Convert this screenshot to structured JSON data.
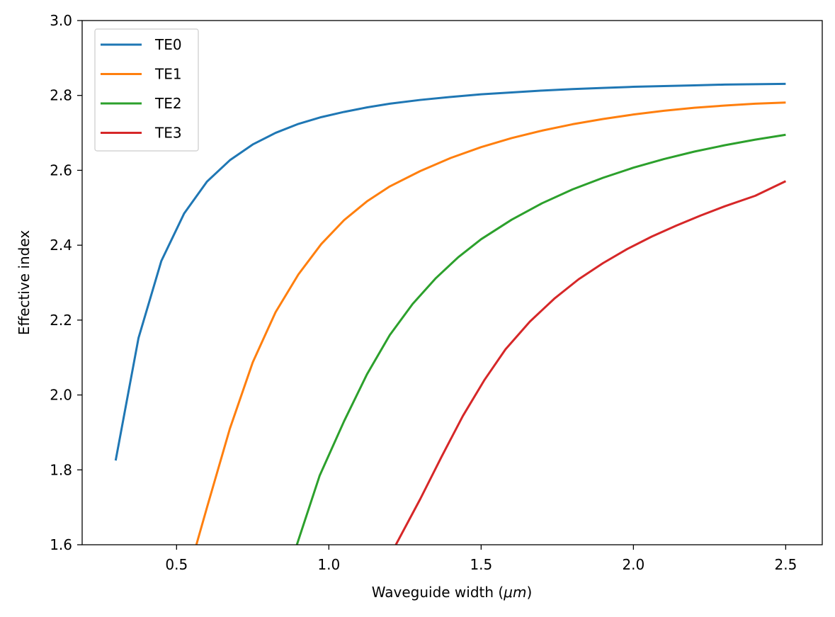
{
  "chart_data": {
    "type": "line",
    "title": "",
    "xlabel": "Waveguide width (μm)",
    "xlabel_prefix": "Waveguide width (",
    "xlabel_unit": "μm",
    "xlabel_suffix": ")",
    "ylabel": "Effective index",
    "xlim": [
      0.19,
      2.62
    ],
    "ylim": [
      1.6,
      3.0
    ],
    "xticks": [
      0.5,
      1.0,
      1.5,
      2.0,
      2.5
    ],
    "xtick_labels": [
      "0.5",
      "1.0",
      "1.5",
      "2.0",
      "2.5"
    ],
    "yticks": [
      1.6,
      1.8,
      2.0,
      2.2,
      2.4,
      2.6,
      2.8,
      3.0
    ],
    "ytick_labels": [
      "1.6",
      "1.8",
      "2.0",
      "2.2",
      "2.4",
      "2.6",
      "2.8",
      "3.0"
    ],
    "grid": false,
    "legend_position": "top-left",
    "series": [
      {
        "name": "TE0",
        "color": "#1f77b4",
        "x": [
          0.3,
          0.375,
          0.45,
          0.525,
          0.6,
          0.675,
          0.75,
          0.825,
          0.9,
          0.975,
          1.05,
          1.125,
          1.2,
          1.3,
          1.4,
          1.5,
          1.6,
          1.7,
          1.8,
          1.9,
          2.0,
          2.1,
          2.2,
          2.3,
          2.4,
          2.5
        ],
        "y": [
          1.825,
          2.152,
          2.358,
          2.485,
          2.57,
          2.627,
          2.669,
          2.7,
          2.724,
          2.742,
          2.756,
          2.768,
          2.778,
          2.788,
          2.796,
          2.803,
          2.808,
          2.813,
          2.817,
          2.82,
          2.823,
          2.825,
          2.827,
          2.829,
          2.83,
          2.831
        ]
      },
      {
        "name": "TE1",
        "color": "#ff7f0e",
        "x": [
          0.565,
          0.6,
          0.675,
          0.75,
          0.825,
          0.9,
          0.975,
          1.05,
          1.125,
          1.2,
          1.3,
          1.4,
          1.5,
          1.6,
          1.7,
          1.8,
          1.9,
          2.0,
          2.1,
          2.2,
          2.3,
          2.4,
          2.5
        ],
        "y": [
          1.6,
          1.7,
          1.91,
          2.087,
          2.221,
          2.322,
          2.403,
          2.467,
          2.517,
          2.557,
          2.598,
          2.633,
          2.662,
          2.686,
          2.706,
          2.723,
          2.737,
          2.749,
          2.759,
          2.767,
          2.773,
          2.778,
          2.781
        ]
      },
      {
        "name": "TE2",
        "color": "#2ca02c",
        "x": [
          0.895,
          0.97,
          1.05,
          1.125,
          1.2,
          1.275,
          1.35,
          1.425,
          1.5,
          1.6,
          1.7,
          1.8,
          1.9,
          2.0,
          2.1,
          2.2,
          2.3,
          2.4,
          2.5
        ],
        "y": [
          1.6,
          1.785,
          1.93,
          2.055,
          2.16,
          2.243,
          2.311,
          2.368,
          2.416,
          2.468,
          2.512,
          2.549,
          2.58,
          2.607,
          2.63,
          2.65,
          2.667,
          2.682,
          2.695
        ]
      },
      {
        "name": "TE3",
        "color": "#d62728",
        "x": [
          1.22,
          1.3,
          1.37,
          1.44,
          1.51,
          1.58,
          1.66,
          1.74,
          1.82,
          1.9,
          1.98,
          2.06,
          2.14,
          2.22,
          2.3,
          2.4,
          2.5
        ],
        "y": [
          1.6,
          1.722,
          1.835,
          1.944,
          2.039,
          2.122,
          2.196,
          2.257,
          2.309,
          2.352,
          2.39,
          2.423,
          2.452,
          2.479,
          2.504,
          2.532,
          2.571
        ]
      }
    ]
  }
}
